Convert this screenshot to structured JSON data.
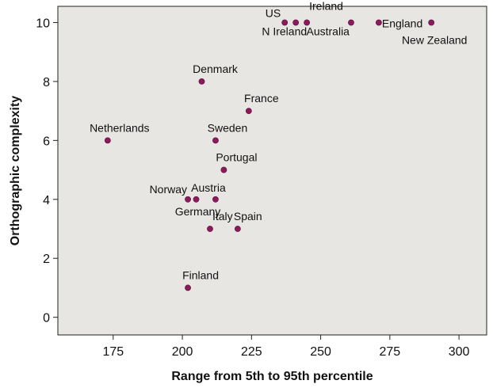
{
  "chart_data": {
    "type": "scatter",
    "title": "",
    "xlabel": "Range from 5th to 95th percentile",
    "ylabel": "Orthographic complexity",
    "xlim": [
      155,
      310
    ],
    "ylim": [
      -0.6,
      10.55
    ],
    "xticks": [
      175,
      200,
      225,
      250,
      275,
      300
    ],
    "yticks": [
      0,
      2,
      4,
      6,
      8,
      10
    ],
    "grid": false,
    "legend": "none",
    "plot_background": "#e8e6e3",
    "point_color": "#8b1a5c",
    "points": [
      {
        "label": "US",
        "x": 237,
        "y": 10
      },
      {
        "label": "N Ireland",
        "x": 241,
        "y": 10
      },
      {
        "label": "Ireland",
        "x": 245,
        "y": 10
      },
      {
        "label": "Australia",
        "x": 261,
        "y": 10
      },
      {
        "label": "England",
        "x": 271,
        "y": 10
      },
      {
        "label": "New Zealand",
        "x": 290,
        "y": 10
      },
      {
        "label": "Denmark",
        "x": 207,
        "y": 8
      },
      {
        "label": "France",
        "x": 224,
        "y": 7
      },
      {
        "label": "Netherlands",
        "x": 173,
        "y": 6
      },
      {
        "label": "Sweden",
        "x": 212,
        "y": 6
      },
      {
        "label": "Portugal",
        "x": 215,
        "y": 5
      },
      {
        "label": "Norway",
        "x": 202,
        "y": 4
      },
      {
        "label": "Germany",
        "x": 205,
        "y": 4
      },
      {
        "label": "Austria",
        "x": 212,
        "y": 4
      },
      {
        "label": "Italy",
        "x": 210,
        "y": 3
      },
      {
        "label": "Spain",
        "x": 220,
        "y": 3
      },
      {
        "label": "Finland",
        "x": 202,
        "y": 1
      }
    ]
  }
}
